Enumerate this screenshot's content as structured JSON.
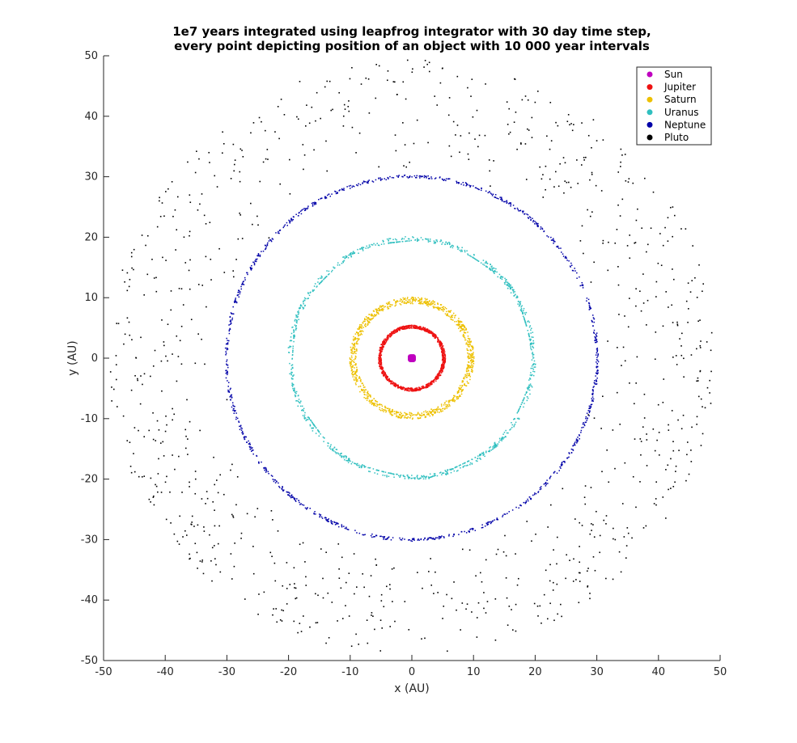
{
  "chart_data": {
    "type": "scatter",
    "title": [
      "1e7 years integrated using leapfrog integrator with 30 day time step,",
      "every point depicting position of an object with 10 000 year intervals"
    ],
    "xlabel": "x (AU)",
    "ylabel": "y (AU)",
    "xlim": [
      -50,
      50
    ],
    "ylim": [
      -50,
      50
    ],
    "xticks": [
      -50,
      -40,
      -30,
      -20,
      -10,
      0,
      10,
      20,
      30,
      40,
      50
    ],
    "yticks": [
      -50,
      -40,
      -30,
      -20,
      -10,
      0,
      10,
      20,
      30,
      40,
      50
    ],
    "grid": false,
    "legend_position": "top-right",
    "points_per_series": 1000,
    "series": [
      {
        "name": "Sun",
        "color": "#bf00bf",
        "orbit_radius": [
          0,
          0.3
        ],
        "marker": "dot"
      },
      {
        "name": "Jupiter",
        "color": "#ee1111",
        "orbit_radius": [
          4.95,
          5.46
        ],
        "marker": "dot"
      },
      {
        "name": "Saturn",
        "color": "#edc000",
        "orbit_radius": [
          9.0,
          10.1
        ],
        "marker": "dot"
      },
      {
        "name": "Uranus",
        "color": "#2fbfbf",
        "orbit_radius": [
          18.2,
          20.1
        ],
        "marker": "dot"
      },
      {
        "name": "Neptune",
        "color": "#0000a8",
        "orbit_radius": [
          29.8,
          30.3
        ],
        "marker": "dot"
      },
      {
        "name": "Pluto",
        "color": "#000000",
        "orbit_radius": [
          29.7,
          49.3
        ],
        "marker": "dot"
      }
    ]
  }
}
